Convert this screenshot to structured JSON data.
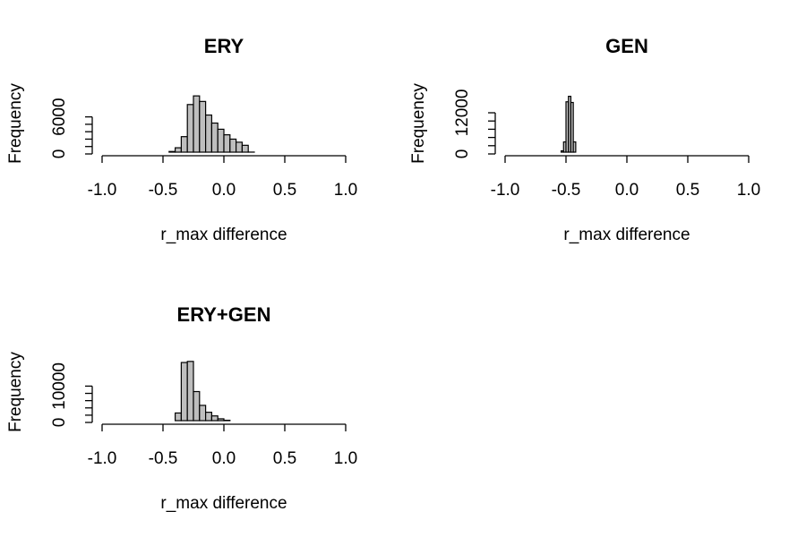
{
  "chart_data": [
    {
      "type": "bar",
      "title": "ERY",
      "xlabel": "r_max difference",
      "ylabel": "Frequency",
      "xlim": [
        -1.0,
        1.0
      ],
      "xticks": [
        "-1.0",
        "-0.5",
        "0.0",
        "0.5",
        "1.0"
      ],
      "ylim": [
        0,
        10000
      ],
      "yticks": [
        "0",
        "6000"
      ],
      "grid": false,
      "bin_width": 0.05,
      "bins": [
        {
          "x0": -0.5,
          "x1": -0.45,
          "value": 200
        },
        {
          "x0": -0.45,
          "x1": -0.4,
          "value": 400
        },
        {
          "x0": -0.4,
          "x1": -0.35,
          "value": 1000
        },
        {
          "x0": -0.35,
          "x1": -0.3,
          "value": 2800
        },
        {
          "x0": -0.3,
          "x1": -0.25,
          "value": 8000
        },
        {
          "x0": -0.25,
          "x1": -0.2,
          "value": 9400
        },
        {
          "x0": -0.2,
          "x1": -0.15,
          "value": 8500
        },
        {
          "x0": -0.15,
          "x1": -0.1,
          "value": 6300
        },
        {
          "x0": -0.1,
          "x1": -0.05,
          "value": 5000
        },
        {
          "x0": -0.05,
          "x1": 0.0,
          "value": 4000
        },
        {
          "x0": 0.0,
          "x1": 0.05,
          "value": 3100
        },
        {
          "x0": 0.05,
          "x1": 0.1,
          "value": 2400
        },
        {
          "x0": 0.1,
          "x1": 0.15,
          "value": 1900
        },
        {
          "x0": 0.15,
          "x1": 0.2,
          "value": 1400
        },
        {
          "x0": 0.2,
          "x1": 0.25,
          "value": 300
        }
      ]
    },
    {
      "type": "bar",
      "title": "GEN",
      "xlabel": "r_max difference",
      "ylabel": "Frequency",
      "xlim": [
        -1.0,
        1.0
      ],
      "xticks": [
        "-1.0",
        "-0.5",
        "0.0",
        "0.5",
        "1.0"
      ],
      "ylim": [
        0,
        18000
      ],
      "yticks": [
        "0",
        "12000"
      ],
      "grid": false,
      "bin_width": 0.02,
      "bins": [
        {
          "x0": -0.56,
          "x1": -0.54,
          "value": 300
        },
        {
          "x0": -0.54,
          "x1": -0.52,
          "value": 900
        },
        {
          "x0": -0.52,
          "x1": -0.5,
          "value": 3500
        },
        {
          "x0": -0.5,
          "x1": -0.48,
          "value": 15200
        },
        {
          "x0": -0.48,
          "x1": -0.46,
          "value": 16800
        },
        {
          "x0": -0.46,
          "x1": -0.44,
          "value": 15000
        },
        {
          "x0": -0.44,
          "x1": -0.42,
          "value": 3500
        },
        {
          "x0": -0.42,
          "x1": -0.4,
          "value": 500
        }
      ]
    },
    {
      "type": "bar",
      "title": "ERY+GEN",
      "xlabel": "r_max difference",
      "ylabel": "Frequency",
      "xlim": [
        -1.0,
        1.0
      ],
      "xticks": [
        "-1.0",
        "-0.5",
        "0.0",
        "0.5",
        "1.0"
      ],
      "ylim": [
        0,
        17000
      ],
      "yticks": [
        "0",
        "10000"
      ],
      "grid": false,
      "bin_width": 0.05,
      "bins": [
        {
          "x0": -0.45,
          "x1": -0.4,
          "value": 300
        },
        {
          "x0": -0.4,
          "x1": -0.35,
          "value": 2600
        },
        {
          "x0": -0.35,
          "x1": -0.3,
          "value": 16500
        },
        {
          "x0": -0.3,
          "x1": -0.25,
          "value": 16800
        },
        {
          "x0": -0.25,
          "x1": -0.2,
          "value": 8500
        },
        {
          "x0": -0.2,
          "x1": -0.15,
          "value": 4700
        },
        {
          "x0": -0.15,
          "x1": -0.1,
          "value": 2800
        },
        {
          "x0": -0.1,
          "x1": -0.05,
          "value": 1800
        },
        {
          "x0": -0.05,
          "x1": 0.0,
          "value": 1000
        },
        {
          "x0": 0.0,
          "x1": 0.05,
          "value": 600
        },
        {
          "x0": 0.05,
          "x1": 0.1,
          "value": 300
        }
      ]
    }
  ]
}
